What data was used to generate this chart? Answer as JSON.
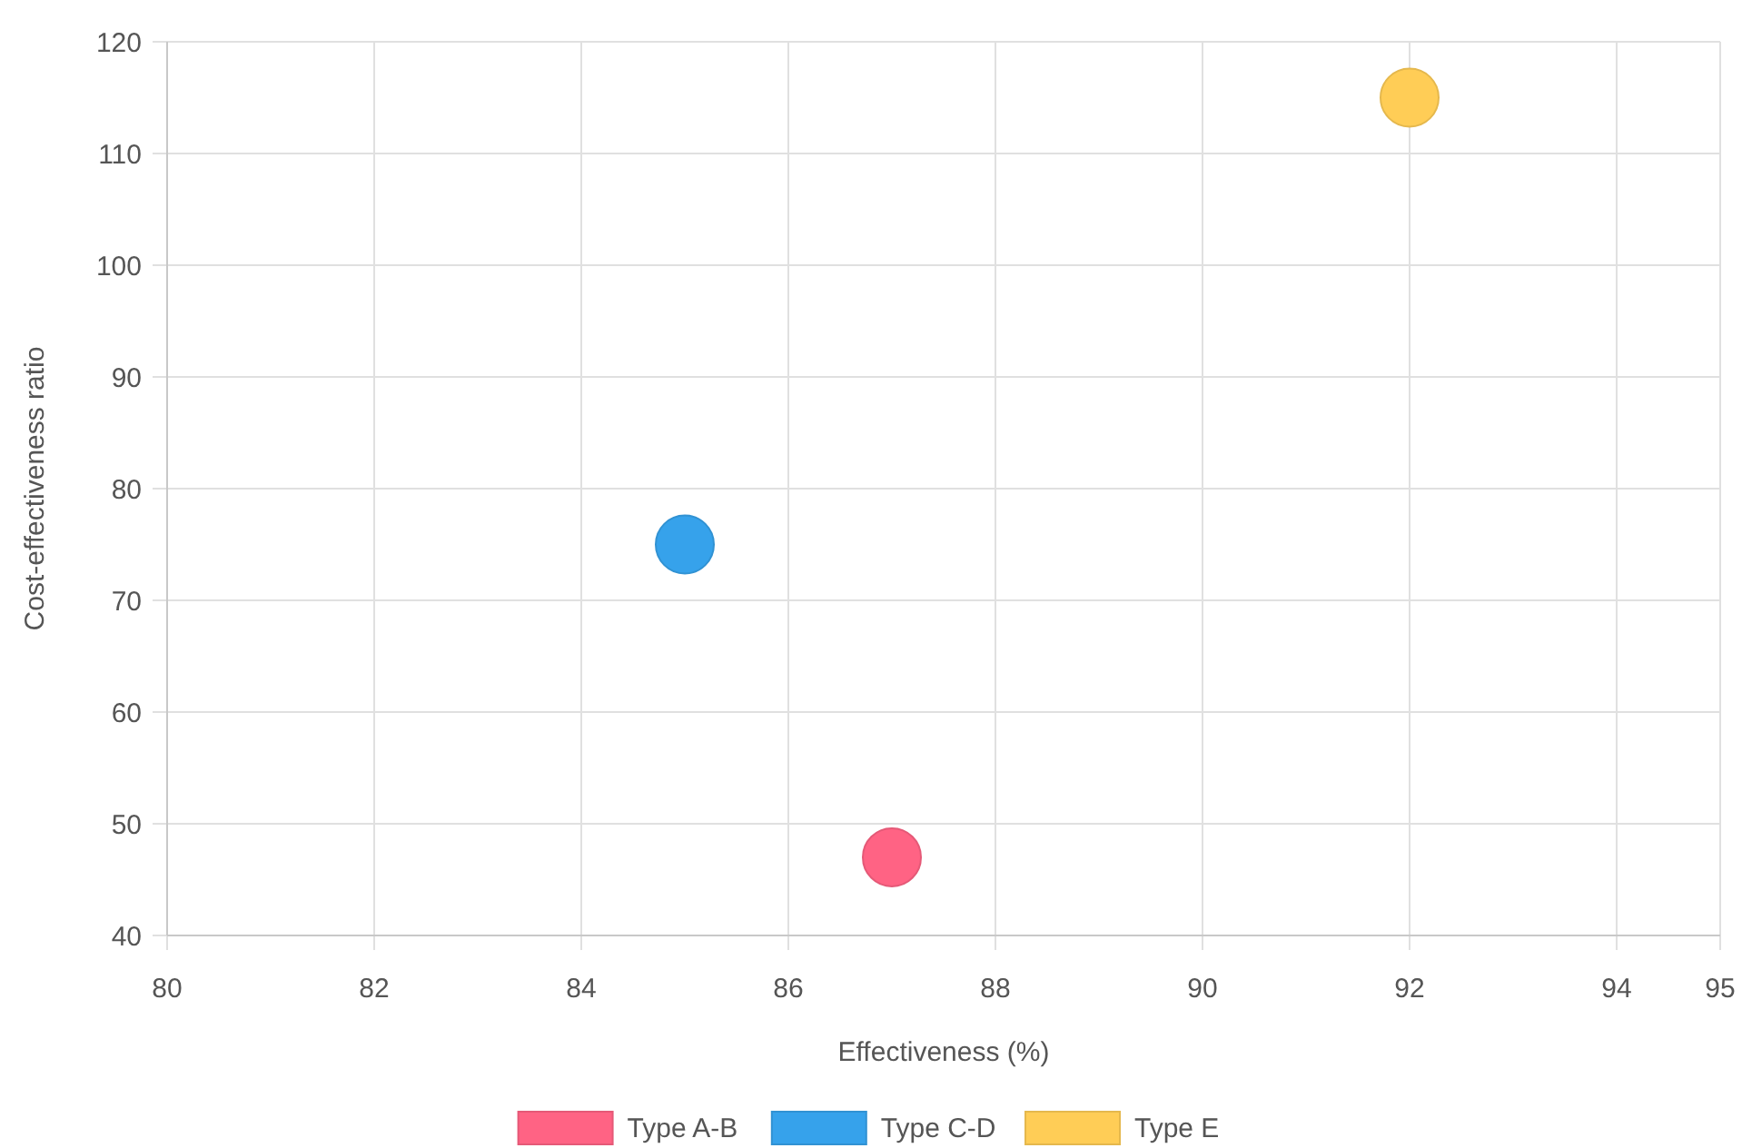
{
  "chart_data": {
    "type": "scatter",
    "xlabel": "Effectiveness (%)",
    "ylabel": "Cost-effectiveness ratio",
    "xlim": [
      80,
      95
    ],
    "xticks": [
      80,
      82,
      84,
      86,
      88,
      90,
      92,
      94,
      95
    ],
    "ylim": [
      40,
      120
    ],
    "yticks": [
      40,
      50,
      60,
      70,
      80,
      90,
      100,
      110,
      120
    ],
    "grid": true,
    "legend": "bottom",
    "marker": "circle",
    "series": [
      {
        "name": "Type A-B",
        "color": "#ff6384",
        "x": [
          87
        ],
        "values": [
          47
        ]
      },
      {
        "name": "Type C-D",
        "color": "#36a2eb",
        "x": [
          85
        ],
        "values": [
          75
        ]
      },
      {
        "name": "Type E",
        "color": "#ffcd56",
        "x": [
          92
        ],
        "values": [
          115
        ]
      }
    ]
  }
}
